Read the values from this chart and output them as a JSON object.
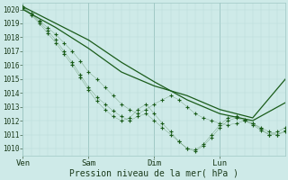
{
  "xlabel": "Pression niveau de la mer( hPa )",
  "background_color": "#ceeae8",
  "grid_color_minor": "#b8d8d6",
  "grid_color_major": "#a0c8c5",
  "line_color": "#1a5c1a",
  "xlim": [
    0,
    96
  ],
  "ylim": [
    1009.5,
    1020.5
  ],
  "yticks": [
    1010,
    1011,
    1012,
    1013,
    1014,
    1015,
    1016,
    1017,
    1018,
    1019,
    1020
  ],
  "xtick_positions": [
    0,
    24,
    48,
    72
  ],
  "xtick_labels": [
    "Ven",
    "Sam",
    "Dim",
    "Lun"
  ],
  "lines": [
    {
      "x": [
        0,
        12,
        24,
        36,
        48,
        60,
        72,
        84,
        96
      ],
      "y": [
        1020.2,
        1019.0,
        1017.8,
        1016.2,
        1014.8,
        1013.5,
        1012.5,
        1012.0,
        1013.3
      ],
      "style": "solid",
      "marker": null,
      "lw": 0.9
    },
    {
      "x": [
        0,
        12,
        24,
        36,
        48,
        60,
        72,
        84,
        96
      ],
      "y": [
        1020.0,
        1018.7,
        1017.2,
        1015.5,
        1014.5,
        1013.8,
        1012.8,
        1012.2,
        1015.0
      ],
      "style": "solid",
      "marker": null,
      "lw": 0.9
    },
    {
      "x": [
        0,
        3,
        6,
        9,
        12,
        15,
        18,
        21,
        24,
        27,
        30,
        33,
        36,
        39,
        42,
        45,
        48,
        51,
        54,
        57,
        60,
        63,
        66,
        69,
        72,
        75,
        78,
        81,
        84,
        87,
        90,
        93,
        96
      ],
      "y": [
        1020.1,
        1019.7,
        1019.2,
        1018.7,
        1018.2,
        1017.6,
        1017.0,
        1016.3,
        1015.5,
        1015.0,
        1014.4,
        1013.8,
        1013.2,
        1012.8,
        1012.5,
        1012.8,
        1013.2,
        1013.5,
        1013.8,
        1013.5,
        1013.0,
        1012.5,
        1012.2,
        1012.0,
        1011.8,
        1011.7,
        1011.8,
        1012.0,
        1011.8,
        1011.5,
        1011.2,
        1011.0,
        1011.3
      ],
      "style": "solid",
      "marker": "+",
      "lw": 0.6,
      "ms": 2.5
    },
    {
      "x": [
        0,
        3,
        6,
        9,
        12,
        15,
        18,
        21,
        24,
        27,
        30,
        33,
        36,
        39,
        42,
        45,
        48,
        51,
        54,
        57,
        60,
        63,
        66,
        69,
        72,
        75,
        78,
        81,
        84,
        87,
        90,
        93,
        96
      ],
      "y": [
        1020.2,
        1019.7,
        1019.1,
        1018.5,
        1017.8,
        1017.0,
        1016.2,
        1015.3,
        1014.4,
        1013.7,
        1013.2,
        1012.7,
        1012.3,
        1012.0,
        1012.3,
        1012.5,
        1012.0,
        1011.5,
        1011.0,
        1010.5,
        1010.0,
        1009.8,
        1010.2,
        1010.8,
        1011.5,
        1012.0,
        1012.2,
        1012.0,
        1011.7,
        1011.3,
        1011.0,
        1011.0,
        1011.2
      ],
      "style": "solid",
      "marker": "+",
      "lw": 0.6,
      "ms": 2.5
    },
    {
      "x": [
        0,
        3,
        6,
        9,
        12,
        15,
        18,
        21,
        24,
        27,
        30,
        33,
        36,
        39,
        42,
        45,
        48,
        51,
        54,
        57,
        60,
        63,
        66,
        69,
        72,
        75,
        78,
        81,
        84,
        87,
        90,
        93,
        96
      ],
      "y": [
        1020.1,
        1019.6,
        1019.0,
        1018.3,
        1017.6,
        1016.8,
        1016.0,
        1015.1,
        1014.2,
        1013.4,
        1012.8,
        1012.3,
        1012.0,
        1012.2,
        1012.8,
        1013.2,
        1012.5,
        1011.8,
        1011.2,
        1010.5,
        1010.0,
        1009.9,
        1010.3,
        1011.0,
        1011.7,
        1012.2,
        1012.3,
        1012.1,
        1011.8,
        1011.4,
        1011.0,
        1011.2,
        1011.5
      ],
      "style": "solid",
      "marker": "+",
      "lw": 0.6,
      "ms": 2.5
    }
  ]
}
